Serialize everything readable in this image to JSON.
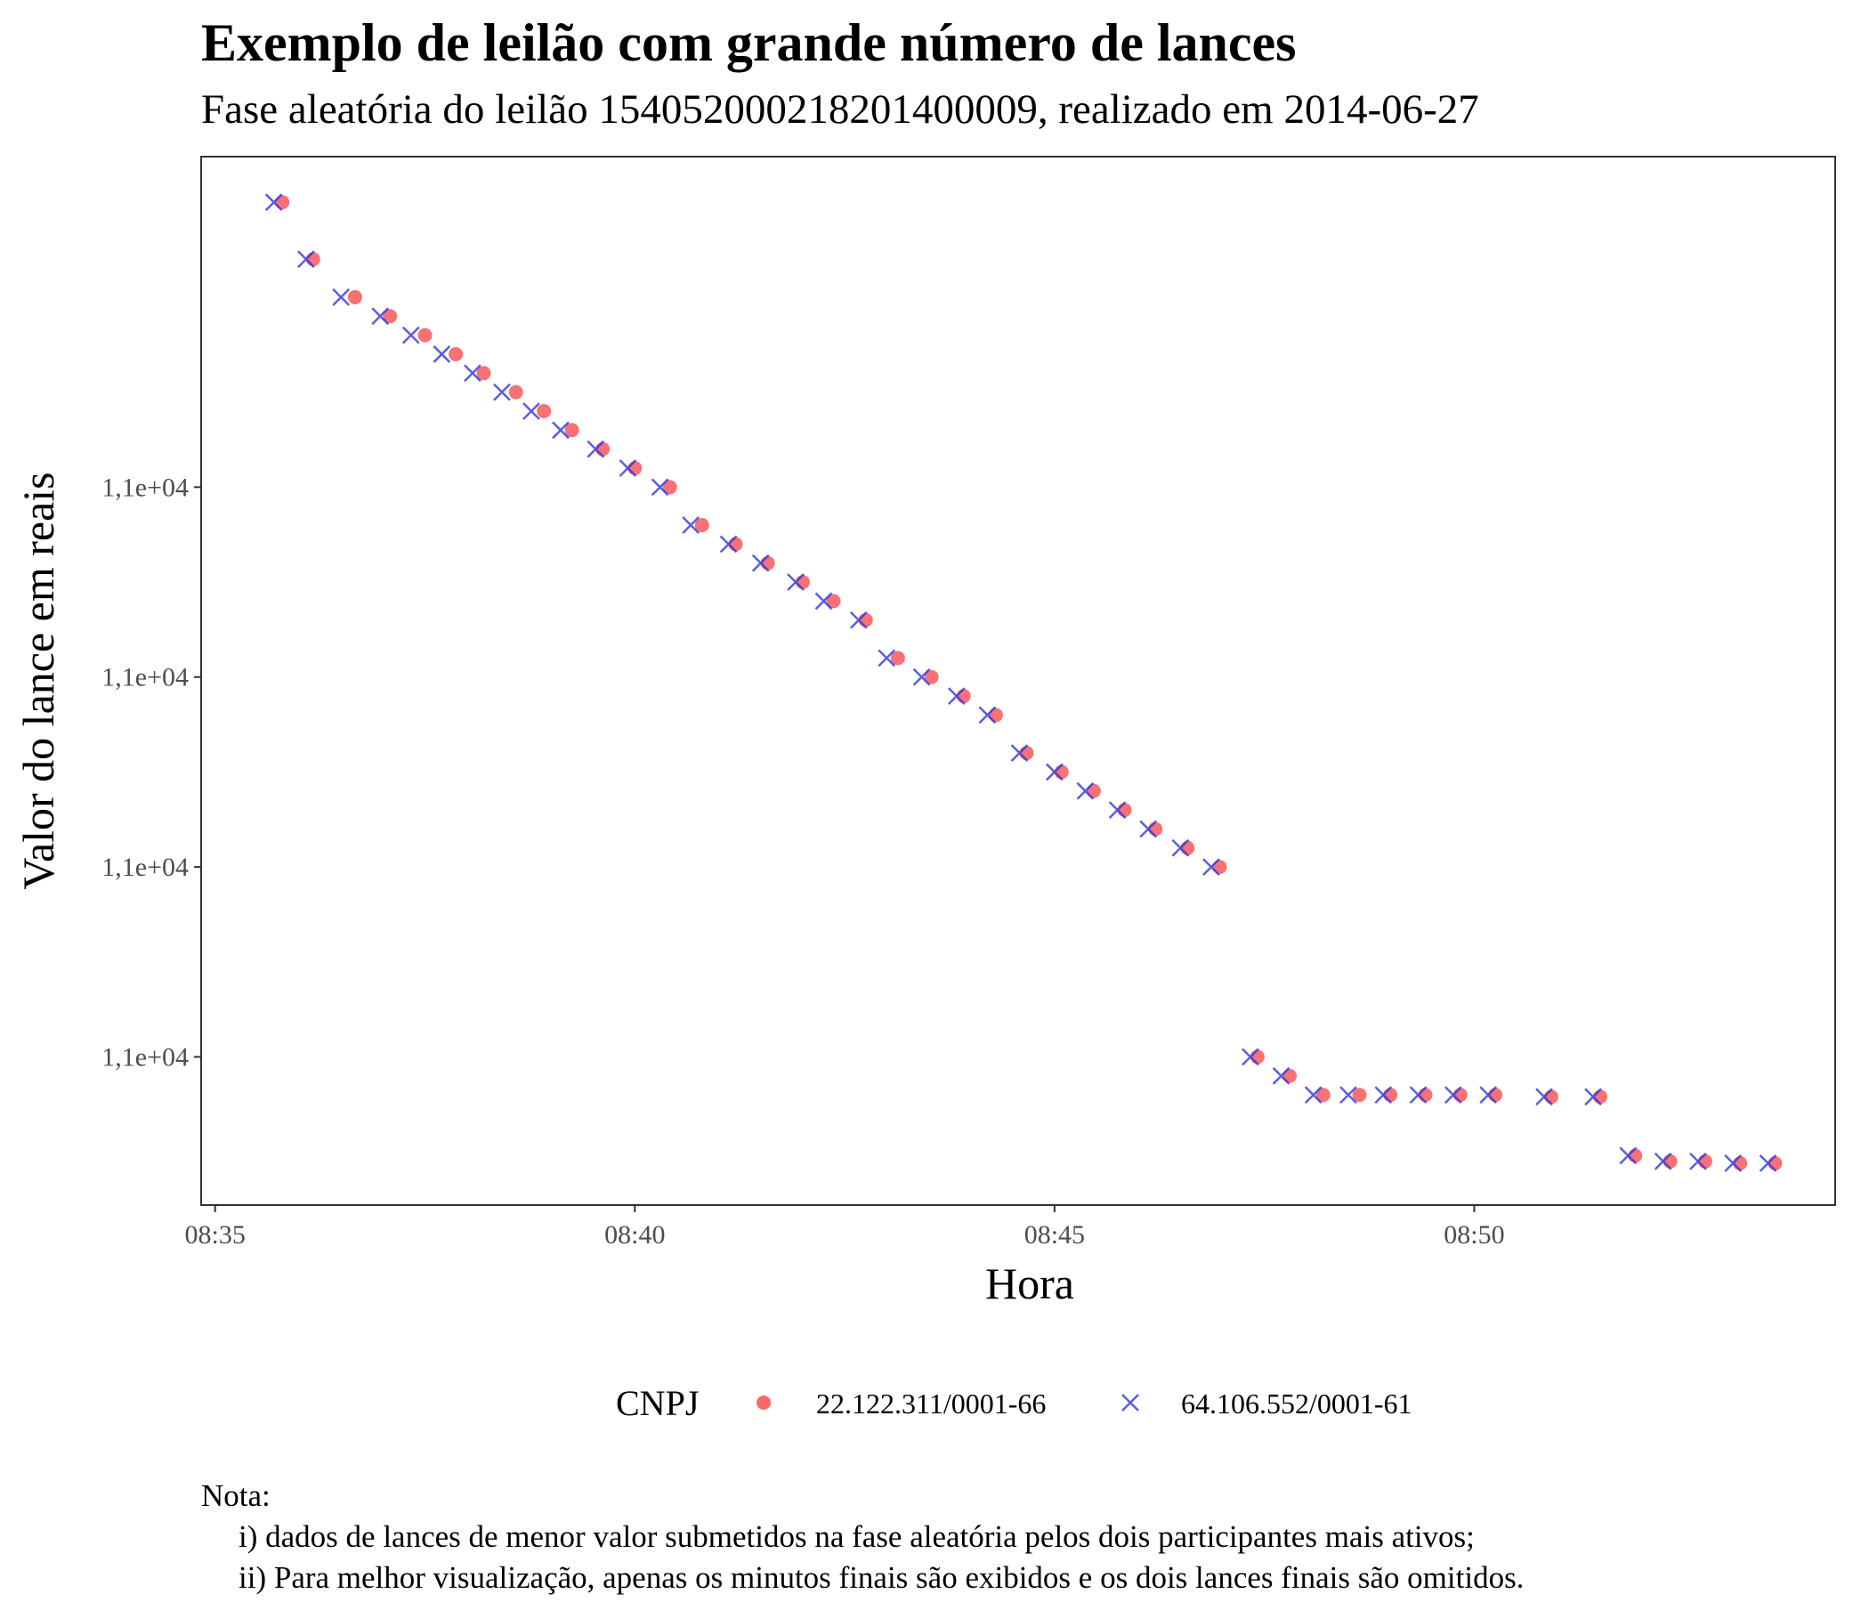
{
  "chart_data": {
    "type": "scatter",
    "title": "Exemplo de leilão com grande número de lances",
    "subtitle": "Fase aleatória do leilão 154052000218201400009, realizado em 2014-06-27",
    "xlabel": "Hora",
    "ylabel": "Valor do lance em reais",
    "x_ticks": [
      "08:35",
      "08:40",
      "08:45",
      "08:50"
    ],
    "y_ticks": [
      "1,1e+04",
      "1,1e+04",
      "1,1e+04",
      "1,1e+04"
    ],
    "y_tick_positions": [
      10995,
      10990,
      10985,
      10980
    ],
    "xlim": [
      "08:34:50",
      "08:54:18"
    ],
    "ylim": [
      10976.1,
      11003.7
    ],
    "grid": false,
    "legend_position": "bottom",
    "legend": {
      "title": "CNPJ",
      "entries": [
        "22.122.311/0001-66",
        "64.106.552/0001-61"
      ]
    },
    "series": [
      {
        "name": "22.122.311/0001-66",
        "marker": "circle",
        "color": "#f8696b",
        "points": [
          [
            "08:35:48",
            11002.5
          ],
          [
            "08:36:10",
            11001
          ],
          [
            "08:36:40",
            11000
          ],
          [
            "08:37:05",
            10999.5
          ],
          [
            "08:37:30",
            10999
          ],
          [
            "08:37:52",
            10998.5
          ],
          [
            "08:38:12",
            10998
          ],
          [
            "08:38:35",
            10997.5
          ],
          [
            "08:38:55",
            10997
          ],
          [
            "08:39:15",
            10996.5
          ],
          [
            "08:39:37",
            10996
          ],
          [
            "08:40:00",
            10995.5
          ],
          [
            "08:40:25",
            10995
          ],
          [
            "08:40:48",
            10994
          ],
          [
            "08:41:12",
            10993.5
          ],
          [
            "08:41:35",
            10993
          ],
          [
            "08:42:00",
            10992.5
          ],
          [
            "08:42:22",
            10992
          ],
          [
            "08:42:45",
            10991.5
          ],
          [
            "08:43:08",
            10990.5
          ],
          [
            "08:43:32",
            10990
          ],
          [
            "08:43:55",
            10989.5
          ],
          [
            "08:44:18",
            10989
          ],
          [
            "08:44:40",
            10988
          ],
          [
            "08:45:05",
            10987.5
          ],
          [
            "08:45:28",
            10987
          ],
          [
            "08:45:50",
            10986.5
          ],
          [
            "08:46:12",
            10986
          ],
          [
            "08:46:35",
            10985.5
          ],
          [
            "08:46:58",
            10985
          ],
          [
            "08:47:25",
            10980
          ],
          [
            "08:47:48",
            10979.5
          ],
          [
            "08:48:12",
            10979
          ],
          [
            "08:48:38",
            10979
          ],
          [
            "08:49:00",
            10979
          ],
          [
            "08:49:25",
            10979
          ],
          [
            "08:49:50",
            10979
          ],
          [
            "08:50:15",
            10979
          ],
          [
            "08:50:55",
            10978.95
          ],
          [
            "08:51:30",
            10978.95
          ],
          [
            "08:51:55",
            10977.4
          ],
          [
            "08:52:20",
            10977.25
          ],
          [
            "08:52:45",
            10977.25
          ],
          [
            "08:53:10",
            10977.2
          ],
          [
            "08:53:35",
            10977.2
          ]
        ]
      },
      {
        "name": "64.106.552/0001-61",
        "marker": "x",
        "color": "#3333dd",
        "points": [
          [
            "08:35:42",
            11002.5
          ],
          [
            "08:36:05",
            11001
          ],
          [
            "08:36:30",
            11000
          ],
          [
            "08:36:58",
            10999.5
          ],
          [
            "08:37:20",
            10999
          ],
          [
            "08:37:42",
            10998.5
          ],
          [
            "08:38:04",
            10998
          ],
          [
            "08:38:25",
            10997.5
          ],
          [
            "08:38:46",
            10997
          ],
          [
            "08:39:07",
            10996.5
          ],
          [
            "08:39:32",
            10996
          ],
          [
            "08:39:55",
            10995.5
          ],
          [
            "08:40:18",
            10995
          ],
          [
            "08:40:40",
            10994
          ],
          [
            "08:41:07",
            10993.5
          ],
          [
            "08:41:30",
            10993
          ],
          [
            "08:41:55",
            10992.5
          ],
          [
            "08:42:15",
            10992
          ],
          [
            "08:42:40",
            10991.5
          ],
          [
            "08:43:00",
            10990.5
          ],
          [
            "08:43:25",
            10990
          ],
          [
            "08:43:50",
            10989.5
          ],
          [
            "08:44:12",
            10989
          ],
          [
            "08:44:35",
            10988
          ],
          [
            "08:45:00",
            10987.5
          ],
          [
            "08:45:22",
            10987
          ],
          [
            "08:45:45",
            10986.5
          ],
          [
            "08:46:07",
            10986
          ],
          [
            "08:46:30",
            10985.5
          ],
          [
            "08:46:52",
            10985
          ],
          [
            "08:47:20",
            10980
          ],
          [
            "08:47:42",
            10979.5
          ],
          [
            "08:48:05",
            10979
          ],
          [
            "08:48:30",
            10979
          ],
          [
            "08:48:55",
            10979
          ],
          [
            "08:49:20",
            10979
          ],
          [
            "08:49:45",
            10979
          ],
          [
            "08:50:10",
            10979
          ],
          [
            "08:50:50",
            10978.95
          ],
          [
            "08:51:25",
            10978.95
          ],
          [
            "08:51:50",
            10977.4
          ],
          [
            "08:52:15",
            10977.25
          ],
          [
            "08:52:40",
            10977.25
          ],
          [
            "08:53:05",
            10977.2
          ],
          [
            "08:53:30",
            10977.2
          ]
        ]
      }
    ]
  },
  "note": {
    "heading": "Nota:",
    "item1": "i) dados de lances de menor valor submetidos na fase aleatória pelos dois participantes mais ativos;",
    "item2": "ii) Para melhor visualização, apenas os minutos finais são exibidos e os dois lances finais são omitidos."
  }
}
